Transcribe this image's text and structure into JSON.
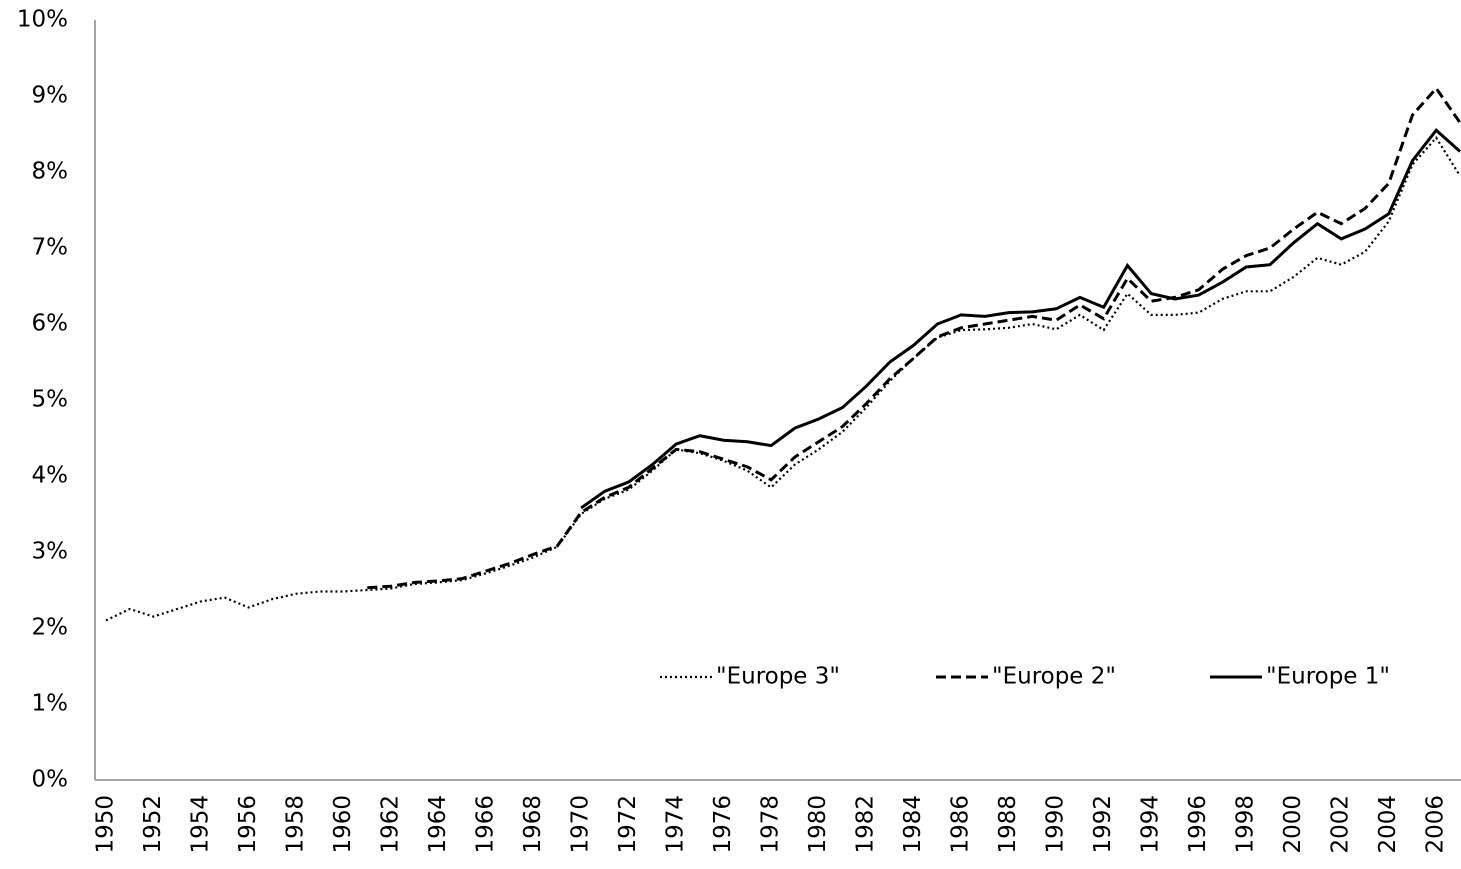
{
  "chart_data": {
    "type": "line",
    "categories": [
      1950,
      null,
      1952,
      null,
      1954,
      null,
      1956,
      null,
      1958,
      null,
      1960,
      null,
      1962,
      null,
      1964,
      null,
      1966,
      null,
      1968,
      null,
      1970,
      null,
      1972,
      null,
      1974,
      null,
      1976,
      null,
      1978,
      null,
      1980,
      null,
      1982,
      null,
      1984,
      null,
      1986,
      null,
      1988,
      null,
      1990,
      null,
      1992,
      null,
      1994,
      null,
      1996,
      null,
      1998,
      null,
      2000,
      null,
      2002,
      null,
      2004,
      null,
      2006,
      null
    ],
    "ylim": [
      0,
      10
    ],
    "yticks": [
      {
        "value": 0,
        "label": "0%"
      },
      {
        "value": 1,
        "label": "1%"
      },
      {
        "value": 2,
        "label": "2%"
      },
      {
        "value": 3,
        "label": "3%"
      },
      {
        "value": 4,
        "label": "4%"
      },
      {
        "value": 5,
        "label": "5%"
      },
      {
        "value": 6,
        "label": "6%"
      },
      {
        "value": 7,
        "label": "7%"
      },
      {
        "value": 8,
        "label": "8%"
      },
      {
        "value": 9,
        "label": "9%"
      },
      {
        "value": 10,
        "label": "10%"
      }
    ],
    "series": [
      {
        "name": "\"Europe 3\"",
        "color": "#000000",
        "dash": "dotted",
        "values": [
          2.1,
          2.25,
          2.15,
          2.25,
          2.35,
          2.4,
          2.27,
          2.38,
          2.45,
          2.48,
          2.48,
          2.5,
          2.52,
          2.58,
          2.6,
          2.63,
          2.72,
          2.82,
          2.93,
          3.07,
          3.5,
          3.7,
          3.82,
          4.07,
          4.35,
          4.3,
          4.2,
          4.07,
          3.85,
          4.15,
          4.35,
          4.58,
          4.9,
          5.25,
          5.55,
          5.82,
          5.92,
          5.93,
          5.95,
          6.0,
          5.93,
          6.12,
          5.92,
          6.4,
          6.12,
          6.12,
          6.15,
          6.33,
          6.43,
          6.43,
          6.62,
          6.87,
          6.78,
          6.95,
          7.35,
          8.1,
          8.45,
          7.95
        ]
      },
      {
        "name": "\"Europe 2\"",
        "color": "#000000",
        "dash": "dashed",
        "values": [
          null,
          null,
          null,
          null,
          null,
          null,
          null,
          null,
          null,
          null,
          null,
          2.53,
          2.55,
          2.6,
          2.62,
          2.65,
          2.75,
          2.85,
          2.97,
          3.08,
          3.52,
          3.72,
          3.85,
          4.1,
          4.35,
          4.32,
          4.22,
          4.12,
          3.95,
          4.25,
          4.45,
          4.65,
          4.95,
          5.28,
          5.55,
          5.83,
          5.95,
          6.0,
          6.05,
          6.1,
          6.05,
          6.25,
          6.07,
          6.6,
          6.3,
          6.35,
          6.45,
          6.72,
          6.9,
          7.0,
          7.25,
          7.47,
          7.32,
          7.52,
          7.85,
          8.75,
          9.1,
          8.65
        ]
      },
      {
        "name": "\"Europe 1\"",
        "color": "#000000",
        "dash": "solid",
        "values": [
          null,
          null,
          null,
          null,
          null,
          null,
          null,
          null,
          null,
          null,
          null,
          null,
          null,
          null,
          null,
          null,
          null,
          null,
          null,
          null,
          3.58,
          3.8,
          3.92,
          4.15,
          4.42,
          4.53,
          4.47,
          4.45,
          4.4,
          4.63,
          4.75,
          4.9,
          5.18,
          5.5,
          5.72,
          6.0,
          6.12,
          6.1,
          6.15,
          6.16,
          6.2,
          6.35,
          6.22,
          6.77,
          6.4,
          6.33,
          6.38,
          6.55,
          6.75,
          6.78,
          7.07,
          7.32,
          7.12,
          7.25,
          7.45,
          8.15,
          8.55,
          8.27
        ]
      }
    ]
  }
}
